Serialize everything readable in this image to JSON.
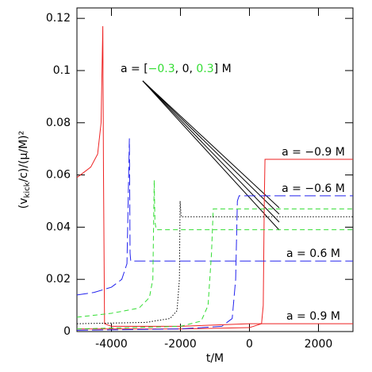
{
  "chart_data": {
    "type": "line",
    "xlabel": "t/M",
    "ylabel": [
      "(v",
      "kick",
      "/c)/(μ/M)²"
    ],
    "xlim": [
      -5000,
      3000
    ],
    "ylim": [
      0,
      0.124
    ],
    "xticks": [
      -4000,
      -2000,
      0,
      2000
    ],
    "yticks": [
      0,
      0.02,
      0.04,
      0.06,
      0.08,
      0.1,
      0.12
    ],
    "annotation": [
      "a = [",
      "−0.3",
      ", 0, ",
      "0.3",
      "] M"
    ],
    "annotation_colors": [
      "#000000",
      "#33dd33",
      "#000000",
      "#33dd33",
      "#000000"
    ],
    "series": [
      {
        "name": "a = 0.9 M",
        "color": "#ee2222",
        "dash": "solid",
        "x": [
          -5000,
          -4800,
          -4600,
          -4400,
          -4300,
          -4250,
          -4230,
          -4200,
          -4000,
          -2000,
          0,
          3000
        ],
        "values": [
          0.059,
          0.061,
          0.063,
          0.068,
          0.08,
          0.117,
          0.06,
          0.003,
          0.002,
          0.002,
          0.003,
          0.003
        ]
      },
      {
        "name": "a = −0.9 M",
        "color": "#ee2222",
        "dash": "solid",
        "x": [
          -5000,
          -2000,
          0,
          350,
          400,
          430,
          450,
          500,
          3000
        ],
        "values": [
          0.001,
          0.001,
          0.0015,
          0.003,
          0.01,
          0.05,
          0.066,
          0.066,
          0.066
        ]
      },
      {
        "name": "a = 0.6 M",
        "color": "#2222ee",
        "dash": "longdash",
        "x": [
          -5000,
          -4500,
          -4000,
          -3700,
          -3550,
          -3480,
          -3460,
          -3440,
          -3400,
          3000
        ],
        "values": [
          0.014,
          0.015,
          0.017,
          0.02,
          0.026,
          0.074,
          0.03,
          0.027,
          0.027,
          0.027
        ]
      },
      {
        "name": "a = −0.6 M",
        "color": "#2222ee",
        "dash": "longdash",
        "x": [
          -5000,
          -2000,
          -800,
          -500,
          -400,
          -350,
          -300,
          3000
        ],
        "values": [
          0.0005,
          0.001,
          0.002,
          0.005,
          0.02,
          0.05,
          0.052,
          0.052
        ]
      },
      {
        "color": "#33dd33",
        "dash": "dashed",
        "x": [
          -5000,
          -4000,
          -3200,
          -2900,
          -2800,
          -2760,
          -2740,
          -2700,
          3000
        ],
        "values": [
          0.0055,
          0.007,
          0.009,
          0.013,
          0.02,
          0.058,
          0.042,
          0.039,
          0.039
        ]
      },
      {
        "color": "#33dd33",
        "dash": "dashed",
        "x": [
          -5000,
          -2000,
          -1400,
          -1200,
          -1100,
          -1050,
          -1000,
          3000
        ],
        "values": [
          0.001,
          0.002,
          0.004,
          0.01,
          0.03,
          0.047,
          0.047,
          0.047
        ]
      },
      {
        "color": "#000000",
        "dash": "dotted",
        "x": [
          -5000,
          -3000,
          -2300,
          -2100,
          -2030,
          -2010,
          -1980,
          3000
        ],
        "values": [
          0.003,
          0.0035,
          0.005,
          0.008,
          0.02,
          0.05,
          0.044,
          0.044
        ]
      }
    ]
  }
}
